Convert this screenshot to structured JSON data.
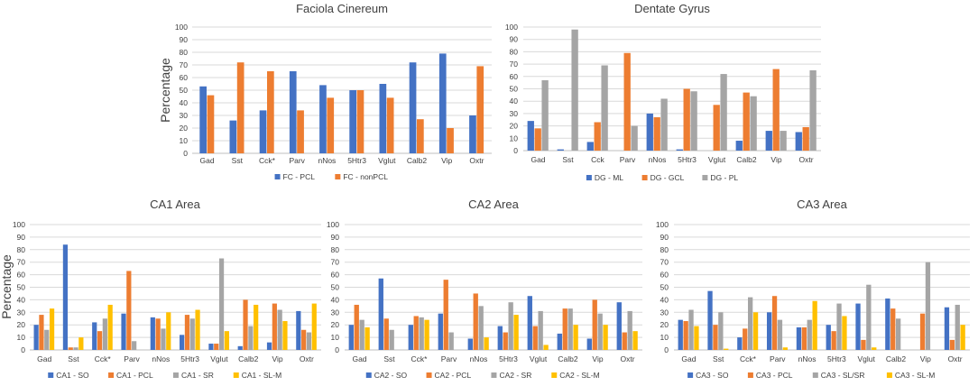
{
  "colors": {
    "blue": "#4472C4",
    "orange": "#ED7D31",
    "gray": "#A5A5A5",
    "yellow": "#FFC000",
    "grid": "#D9D9D9",
    "text": "#404040"
  },
  "chart_data": [
    {
      "id": "fc",
      "type": "bar",
      "title": "Faciola Cinereum",
      "ylabel": "Percentage",
      "xlabel": "",
      "ylim": [
        0,
        100
      ],
      "yticks": [
        0,
        10,
        20,
        30,
        40,
        50,
        60,
        70,
        80,
        90,
        100
      ],
      "grid": true,
      "legend": "bottom",
      "categories": [
        "Gad",
        "Sst",
        "Cck*",
        "Parv",
        "nNos",
        "5Htr3",
        "Vglut",
        "Calb2",
        "Vip",
        "Oxtr"
      ],
      "series": [
        {
          "name": "FC - PCL",
          "color": "#4472C4",
          "values": [
            53,
            26,
            34,
            65,
            54,
            50,
            55,
            72,
            79,
            30
          ]
        },
        {
          "name": "FC - nonPCL",
          "color": "#ED7D31",
          "values": [
            46,
            72,
            65,
            34,
            44,
            50,
            44,
            27,
            20,
            69
          ]
        }
      ]
    },
    {
      "id": "dg",
      "type": "bar",
      "title": "Dentate Gyrus",
      "ylabel": "",
      "xlabel": "",
      "ylim": [
        0,
        100
      ],
      "yticks": [
        0,
        10,
        20,
        30,
        40,
        50,
        60,
        70,
        80,
        90,
        100
      ],
      "grid": true,
      "legend": "bottom",
      "categories": [
        "Gad",
        "Sst",
        "Cck",
        "Parv",
        "nNos",
        "5Htr3",
        "Vglut",
        "Calb2",
        "Vip",
        "Oxtr"
      ],
      "series": [
        {
          "name": "DG - ML",
          "color": "#4472C4",
          "values": [
            24,
            1,
            7,
            0,
            30,
            1,
            0,
            8,
            16,
            15
          ]
        },
        {
          "name": "DG - GCL",
          "color": "#ED7D31",
          "values": [
            18,
            0,
            23,
            79,
            27,
            50,
            37,
            47,
            66,
            19
          ]
        },
        {
          "name": "DG - PL",
          "color": "#A5A5A5",
          "values": [
            57,
            98,
            69,
            20,
            42,
            48,
            62,
            44,
            16,
            65
          ]
        }
      ]
    },
    {
      "id": "ca1",
      "type": "bar",
      "title": "CA1 Area",
      "ylabel": "Percentage",
      "xlabel": "",
      "ylim": [
        0,
        100
      ],
      "yticks": [
        0,
        10,
        20,
        30,
        40,
        50,
        60,
        70,
        80,
        90,
        100
      ],
      "grid": true,
      "legend": "bottom",
      "categories": [
        "Gad",
        "Sst",
        "Cck*",
        "Parv",
        "nNos",
        "5Htr3",
        "Vglut",
        "Calb2",
        "Vip",
        "Oxtr"
      ],
      "series": [
        {
          "name": "CA1 - SO",
          "color": "#4472C4",
          "values": [
            20,
            84,
            22,
            29,
            26,
            12,
            5,
            3,
            6,
            31
          ]
        },
        {
          "name": "CA1 - PCL",
          "color": "#ED7D31",
          "values": [
            28,
            2,
            15,
            63,
            25,
            28,
            5,
            40,
            37,
            16
          ]
        },
        {
          "name": "CA1 - SR",
          "color": "#A5A5A5",
          "values": [
            16,
            2,
            25,
            7,
            17,
            25,
            73,
            19,
            32,
            14
          ]
        },
        {
          "name": "CA1 - SL-M",
          "color": "#FFC000",
          "values": [
            33,
            10,
            36,
            0,
            30,
            32,
            15,
            36,
            23,
            37
          ]
        }
      ]
    },
    {
      "id": "ca2",
      "type": "bar",
      "title": "CA2 Area",
      "ylabel": "",
      "xlabel": "",
      "ylim": [
        0,
        100
      ],
      "yticks": [
        0,
        10,
        20,
        30,
        40,
        50,
        60,
        70,
        80,
        90,
        100
      ],
      "grid": true,
      "legend": "bottom",
      "categories": [
        "Gad",
        "Sst",
        "Cck*",
        "Parv",
        "nNos",
        "5Htr3",
        "Vglut",
        "Calb2",
        "Vip",
        "Oxtr"
      ],
      "series": [
        {
          "name": "CA2 - SO",
          "color": "#4472C4",
          "values": [
            20,
            57,
            20,
            29,
            9,
            19,
            43,
            13,
            9,
            38
          ]
        },
        {
          "name": "CA2 - PCL",
          "color": "#ED7D31",
          "values": [
            36,
            25,
            27,
            56,
            45,
            14,
            19,
            33,
            40,
            14
          ]
        },
        {
          "name": "CA2 - SR",
          "color": "#A5A5A5",
          "values": [
            24,
            16,
            26,
            14,
            35,
            38,
            31,
            33,
            29,
            31
          ]
        },
        {
          "name": "CA2 - SL-M",
          "color": "#FFC000",
          "values": [
            18,
            0,
            24,
            0,
            10,
            28,
            4,
            20,
            20,
            15
          ]
        }
      ]
    },
    {
      "id": "ca3",
      "type": "bar",
      "title": "CA3 Area",
      "ylabel": "",
      "xlabel": "",
      "ylim": [
        0,
        100
      ],
      "yticks": [
        0,
        10,
        20,
        30,
        40,
        50,
        60,
        70,
        80,
        90,
        100
      ],
      "grid": true,
      "legend": "bottom",
      "categories": [
        "Gad",
        "Sst",
        "Cck*",
        "Parv",
        "nNos",
        "5Htr3",
        "Vglut",
        "Calb2",
        "Vip",
        "Oxtr"
      ],
      "series": [
        {
          "name": "CA3 - SO",
          "color": "#4472C4",
          "values": [
            24,
            47,
            10,
            30,
            18,
            20,
            37,
            41,
            0,
            34
          ]
        },
        {
          "name": "CA3 - PCL",
          "color": "#ED7D31",
          "values": [
            23,
            20,
            17,
            43,
            18,
            15,
            8,
            33,
            29,
            8
          ]
        },
        {
          "name": "CA3 - SL/SR",
          "color": "#A5A5A5",
          "values": [
            32,
            30,
            42,
            24,
            24,
            37,
            52,
            25,
            70,
            36
          ]
        },
        {
          "name": "CA3 - SL-M",
          "color": "#FFC000",
          "values": [
            19,
            1,
            30,
            2,
            39,
            27,
            2,
            0,
            0,
            20
          ]
        }
      ]
    }
  ]
}
